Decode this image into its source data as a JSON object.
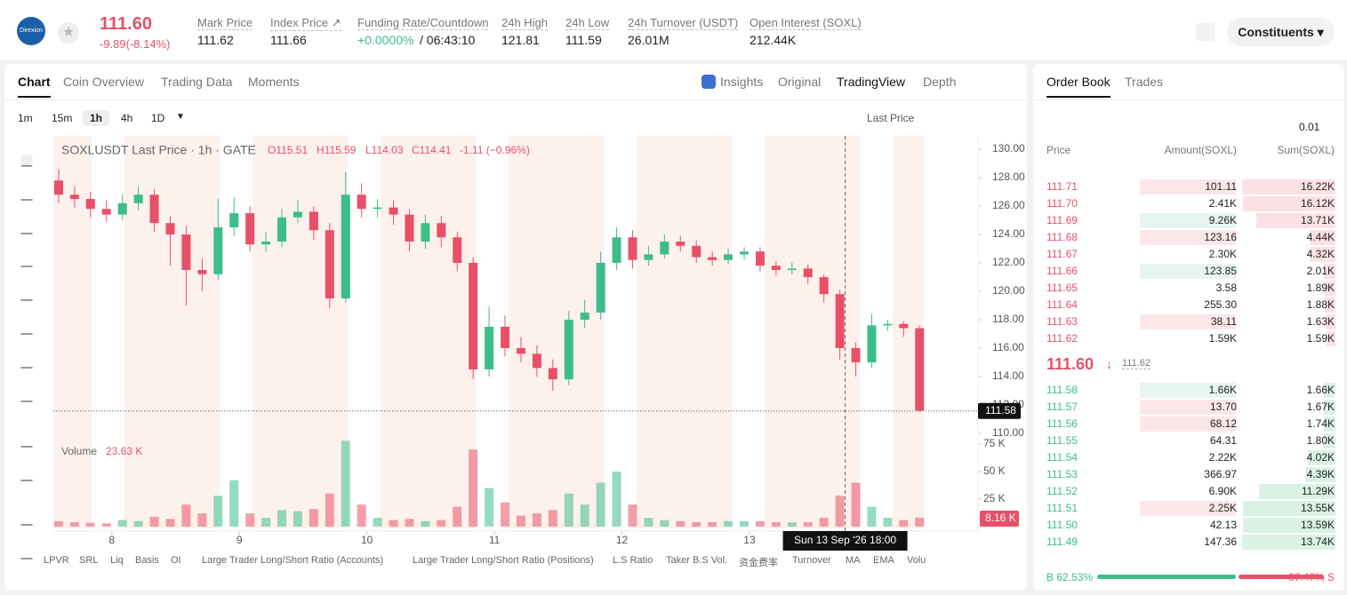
{
  "header": {
    "logo": "Direxion",
    "price": "111.60",
    "change": "-9.89(-8.14%)",
    "stats": [
      {
        "label": "Mark Price",
        "value": "111.62"
      },
      {
        "label": "Index Price ↗",
        "value": "111.66"
      },
      {
        "label": "Funding Rate/Countdown",
        "value": "+0.0000%",
        "value2": "/ 06:43:10"
      },
      {
        "label": "24h High",
        "value": "121.81"
      },
      {
        "label": "24h Low",
        "value": "111.59"
      },
      {
        "label": "24h Turnover (USDT)",
        "value": "26.01M"
      },
      {
        "label": "Open Interest (SOXL)",
        "value": "212.44K"
      }
    ],
    "button": "Constituents"
  },
  "tabs": {
    "chart": [
      "Chart",
      "Coin Overview",
      "Trading Data",
      "Moments"
    ],
    "views": [
      "Insights",
      "Original",
      "TradingView",
      "Depth"
    ],
    "book": [
      "Order Book",
      "Trades"
    ]
  },
  "toolbar": {
    "intervals": [
      "1m",
      "15m",
      "1h",
      "4h",
      "1D"
    ],
    "price_source": "Last Price"
  },
  "chart_data": {
    "type": "candlestick",
    "legend": {
      "title": "SOXLUSDT Last Price · 1h · GATE",
      "o": "O115.51",
      "h": "H115.59",
      "l": "L114.03",
      "c": "C114.41",
      "change": "-1.11 (−0.96%)"
    },
    "x": [
      -10,
      -7,
      -4,
      -1,
      2,
      5,
      8,
      11,
      14,
      17,
      20,
      23,
      26,
      29,
      32,
      35,
      38,
      41,
      44,
      47,
      50,
      53,
      56,
      59,
      62,
      65,
      68,
      71,
      74,
      77,
      80,
      83,
      86,
      89,
      92,
      95,
      98,
      101,
      104,
      107,
      110,
      113,
      116,
      119,
      122,
      125,
      128,
      131,
      134,
      137,
      140,
      143,
      146,
      149,
      152
    ],
    "open": [
      127.8,
      126.8,
      126.5,
      125.8,
      125.4,
      126.2,
      126.8,
      124.8,
      124.0,
      121.5,
      121.2,
      124.5,
      125.5,
      123.3,
      123.5,
      125.2,
      125.6,
      124.3,
      119.5,
      126.8,
      125.8,
      125.9,
      125.4,
      123.5,
      124.8,
      123.8,
      122.0,
      114.5,
      117.5,
      116.0,
      115.6,
      114.6,
      113.8,
      118.0,
      118.5,
      122.0,
      123.8,
      122.2,
      122.6,
      123.5,
      123.2,
      122.4,
      122.2,
      122.6,
      122.8,
      121.8,
      121.5,
      121.6,
      121.0,
      119.8,
      116.0,
      115.0,
      117.6,
      117.7,
      117.4
    ],
    "high": [
      128.6,
      127.4,
      127.0,
      126.4,
      126.8,
      127.4,
      127.2,
      125.3,
      124.6,
      122.3,
      126.5,
      126.6,
      126.0,
      124.2,
      125.8,
      126.4,
      126.0,
      124.8,
      128.4,
      127.6,
      126.5,
      126.4,
      125.8,
      125.4,
      125.3,
      124.2,
      122.4,
      118.9,
      118.3,
      116.8,
      116.2,
      115.2,
      118.6,
      119.4,
      122.8,
      124.5,
      124.3,
      123.2,
      124.0,
      123.9,
      123.6,
      122.8,
      123.0,
      123.1,
      123.1,
      122.1,
      122.0,
      121.9,
      121.2,
      120.1,
      116.4,
      118.4,
      118.0,
      117.9,
      117.6
    ],
    "low": [
      126.2,
      125.9,
      125.2,
      124.9,
      125.0,
      125.7,
      124.2,
      121.8,
      119.0,
      120.0,
      120.8,
      123.9,
      122.8,
      122.8,
      123.1,
      124.8,
      123.6,
      118.8,
      119.2,
      125.2,
      125.2,
      124.7,
      122.8,
      123.0,
      123.1,
      121.4,
      113.8,
      114.0,
      115.4,
      115.0,
      114.0,
      113.0,
      113.4,
      117.4,
      118.0,
      121.5,
      121.6,
      121.8,
      122.3,
      122.8,
      122.0,
      121.8,
      121.9,
      122.2,
      121.4,
      121.1,
      121.2,
      120.5,
      119.2,
      115.2,
      114.0,
      114.6,
      117.2,
      116.8,
      111.5
    ],
    "close": [
      126.8,
      126.5,
      125.8,
      125.4,
      126.2,
      126.8,
      124.8,
      124.0,
      121.5,
      121.2,
      124.5,
      125.5,
      123.3,
      123.5,
      125.2,
      125.6,
      124.3,
      119.5,
      126.8,
      125.8,
      125.9,
      125.4,
      123.5,
      124.8,
      123.8,
      122.0,
      114.5,
      117.5,
      116.0,
      115.6,
      114.6,
      113.8,
      118.0,
      118.5,
      122.0,
      123.8,
      122.2,
      122.6,
      123.5,
      123.2,
      122.4,
      122.2,
      122.6,
      122.8,
      121.8,
      121.5,
      121.6,
      121.0,
      119.8,
      116.0,
      115.0,
      117.6,
      117.7,
      117.4,
      111.6
    ],
    "volume": [
      5000,
      4000,
      3500,
      3000,
      6000,
      5000,
      9000,
      7000,
      20000,
      12000,
      28000,
      42000,
      12000,
      8000,
      15000,
      14000,
      16000,
      30000,
      78000,
      20000,
      8000,
      6000,
      7000,
      5000,
      6000,
      18000,
      70000,
      35000,
      22000,
      10000,
      12000,
      15000,
      30000,
      20000,
      40000,
      50000,
      20000,
      8000,
      6000,
      5000,
      4000,
      4000,
      5000,
      5000,
      5000,
      4000,
      4000,
      4000,
      8000,
      28000,
      40000,
      18000,
      8000,
      6000,
      8160
    ],
    "xlim": [
      -11,
      163
    ],
    "ylim": [
      109.56,
      130.94
    ],
    "xticks": [
      {
        "value": 0,
        "label": "8"
      },
      {
        "value": 24,
        "label": "9"
      },
      {
        "value": 48,
        "label": "10"
      },
      {
        "value": 72,
        "label": "11"
      },
      {
        "value": 96,
        "label": "12"
      },
      {
        "value": 120,
        "label": "13"
      }
    ],
    "yticks": [
      {
        "value": 110,
        "label": "110.00"
      },
      {
        "value": 112,
        "label": "112.00"
      },
      {
        "value": 114,
        "label": "114.00"
      },
      {
        "value": 116,
        "label": "116.00"
      },
      {
        "value": 118,
        "label": "118.00"
      },
      {
        "value": 120,
        "label": "120.00"
      },
      {
        "value": 122,
        "label": "122.00"
      },
      {
        "value": 124,
        "label": "124.00"
      },
      {
        "value": 126,
        "label": "126.00"
      },
      {
        "value": 128,
        "label": "128.00"
      },
      {
        "value": 130,
        "label": "130.00"
      }
    ],
    "volume_title": "Volume",
    "volume_value": "23.63 K",
    "volume_ylim": [
      0,
      79000
    ],
    "volume_yticks": [
      {
        "value": 25000,
        "label": "25 K"
      },
      {
        "value": 50000,
        "label": "50 K"
      },
      {
        "value": 75000,
        "label": "75 K"
      }
    ],
    "last_price": {
      "value": 111.58,
      "label": "111.58"
    },
    "last_volume": "8.16 K",
    "crosshair": {
      "x": 138,
      "label": "Sun 13 Sep '26   18:00"
    },
    "colors": {
      "up": "#3dbd8a",
      "down": "#e8506a"
    }
  },
  "indicators": [
    "LPVR",
    "SRL",
    "Liq",
    "Basis",
    "OI",
    "Large Trader Long/Short Ratio (Accounts)",
    "Large Trader Long/Short Ratio (Positions)",
    "L.S Ratio",
    "Taker B.S Vol.",
    "资金费率",
    "Turnover",
    "MA",
    "EMA",
    "Volu"
  ],
  "order_book": {
    "tick": "0.01",
    "headers": [
      "Price",
      "Amount(SOXL)",
      "Sum(SOXL)"
    ],
    "asks": [
      [
        "111.71",
        "101.11",
        "16.22K"
      ],
      [
        "111.70",
        "2.41K",
        "16.12K"
      ],
      [
        "111.69",
        "9.26K",
        "13.71K"
      ],
      [
        "111.68",
        "123.16",
        "4.44K"
      ],
      [
        "111.67",
        "2.30K",
        "4.32K"
      ],
      [
        "111.66",
        "123.85",
        "2.01K"
      ],
      [
        "111.65",
        "3.58",
        "1.89K"
      ],
      [
        "111.64",
        "255.30",
        "1.88K"
      ],
      [
        "111.63",
        "38.11",
        "1.63K"
      ],
      [
        "111.62",
        "1.59K",
        "1.59K"
      ]
    ],
    "ask_flash": [
      "sell",
      null,
      "buy",
      "sell",
      null,
      "buy",
      null,
      null,
      "sell",
      null
    ],
    "mid": {
      "price": "111.60",
      "mark": "111.62"
    },
    "bids": [
      [
        "111.58",
        "1.66K",
        "1.66K"
      ],
      [
        "111.57",
        "13.70",
        "1.67K"
      ],
      [
        "111.56",
        "68.12",
        "1.74K"
      ],
      [
        "111.55",
        "64.31",
        "1.80K"
      ],
      [
        "111.54",
        "2.22K",
        "4.02K"
      ],
      [
        "111.53",
        "366.97",
        "4.39K"
      ],
      [
        "111.52",
        "6.90K",
        "11.29K"
      ],
      [
        "111.51",
        "2.25K",
        "13.55K"
      ],
      [
        "111.50",
        "42.13",
        "13.59K"
      ],
      [
        "111.49",
        "147.36",
        "13.74K"
      ]
    ],
    "bid_flash": [
      "buy",
      "sell",
      "sell",
      null,
      null,
      null,
      null,
      "sell",
      null,
      null
    ],
    "ratio": {
      "buy": "B 62.53%",
      "sell": "37.47% S",
      "buy_value": 62.53,
      "sell_value": 37.47
    }
  }
}
